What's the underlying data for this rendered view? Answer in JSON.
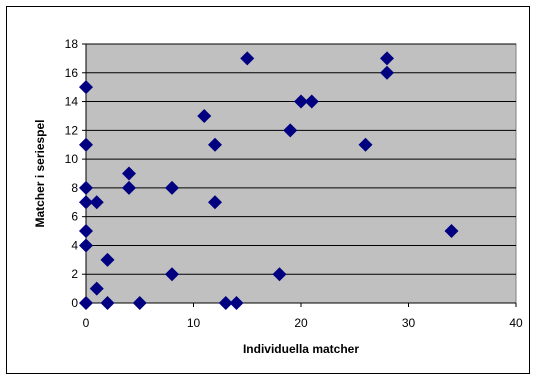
{
  "chart_data": {
    "type": "scatter",
    "xlabel": "Individuella matcher",
    "ylabel": "Matcher i seriespel",
    "xlim": [
      0,
      40
    ],
    "ylim": [
      0,
      18
    ],
    "xticks": [
      "0",
      "10",
      "20",
      "30",
      "40"
    ],
    "yticks": [
      "0",
      "2",
      "4",
      "6",
      "8",
      "10",
      "12",
      "14",
      "16",
      "18"
    ],
    "grid": "horizontal",
    "legend": "none",
    "marker": "diamond",
    "colors": {
      "plot_bg": "#c0c0c0",
      "marker": "#000080",
      "gridline": "#000000"
    },
    "points": [
      {
        "x": 0,
        "y": 15
      },
      {
        "x": 0,
        "y": 11
      },
      {
        "x": 0,
        "y": 8
      },
      {
        "x": 0,
        "y": 7
      },
      {
        "x": 0,
        "y": 5
      },
      {
        "x": 0,
        "y": 4
      },
      {
        "x": 0,
        "y": 0
      },
      {
        "x": 1,
        "y": 7
      },
      {
        "x": 1,
        "y": 1
      },
      {
        "x": 2,
        "y": 3
      },
      {
        "x": 2,
        "y": 0
      },
      {
        "x": 4,
        "y": 9
      },
      {
        "x": 4,
        "y": 8
      },
      {
        "x": 5,
        "y": 0
      },
      {
        "x": 8,
        "y": 8
      },
      {
        "x": 8,
        "y": 2
      },
      {
        "x": 11,
        "y": 13
      },
      {
        "x": 12,
        "y": 11
      },
      {
        "x": 12,
        "y": 7
      },
      {
        "x": 13,
        "y": 0
      },
      {
        "x": 14,
        "y": 0
      },
      {
        "x": 15,
        "y": 17
      },
      {
        "x": 18,
        "y": 2
      },
      {
        "x": 19,
        "y": 12
      },
      {
        "x": 20,
        "y": 14
      },
      {
        "x": 21,
        "y": 14
      },
      {
        "x": 26,
        "y": 11
      },
      {
        "x": 28,
        "y": 17
      },
      {
        "x": 28,
        "y": 16
      },
      {
        "x": 34,
        "y": 5
      }
    ]
  }
}
